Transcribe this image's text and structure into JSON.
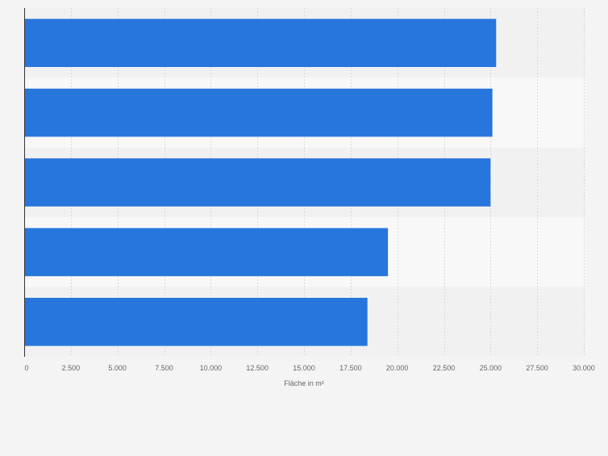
{
  "chart_data": {
    "type": "bar",
    "orientation": "horizontal",
    "categories": [
      "",
      "",
      "",
      "",
      ""
    ],
    "values": [
      25300,
      25100,
      25000,
      19500,
      18400
    ],
    "xlabel": "Fläche in m²",
    "ylabel": "",
    "xlim": [
      0,
      30000
    ],
    "xticks": [
      0,
      2500,
      5000,
      7500,
      10000,
      12500,
      15000,
      17500,
      20000,
      22500,
      25000,
      27500,
      30000
    ],
    "xtick_labels": [
      "0",
      "2.500",
      "5.000",
      "7.500",
      "10.000",
      "12.500",
      "15.000",
      "17.500",
      "20.000",
      "22.500",
      "25.000",
      "27.500",
      "30.000"
    ],
    "grid": true,
    "colors": {
      "bar": "#2776dc",
      "band_dark": "#f1f1f1",
      "band_light": "#f8f8f8",
      "grid": "#d8d8d8",
      "axis": "#333333",
      "text": "#666666"
    }
  }
}
